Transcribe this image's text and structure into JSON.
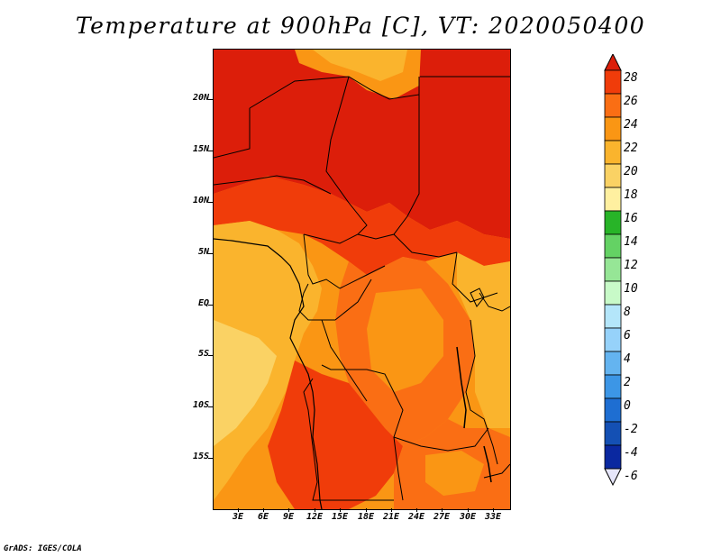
{
  "title": "Temperature at 900hPa [C], VT: 2020050400",
  "footer": "GrADS: IGES/COLA",
  "map": {
    "y_ticks": [
      {
        "label": "20N",
        "lat": 20
      },
      {
        "label": "15N",
        "lat": 15
      },
      {
        "label": "10N",
        "lat": 10
      },
      {
        "label": "5N",
        "lat": 5
      },
      {
        "label": "EQ",
        "lat": 0
      },
      {
        "label": "5S",
        "lat": -5
      },
      {
        "label": "10S",
        "lat": -10
      },
      {
        "label": "15S",
        "lat": -15
      }
    ],
    "x_ticks": [
      {
        "label": "3E",
        "lon": 3
      },
      {
        "label": "6E",
        "lon": 6
      },
      {
        "label": "9E",
        "lon": 9
      },
      {
        "label": "12E",
        "lon": 12
      },
      {
        "label": "15E",
        "lon": 15
      },
      {
        "label": "18E",
        "lon": 18
      },
      {
        "label": "21E",
        "lon": 21
      },
      {
        "label": "24E",
        "lon": 24
      },
      {
        "label": "27E",
        "lon": 27
      },
      {
        "label": "30E",
        "lon": 30
      },
      {
        "label": "33E",
        "lon": 33
      }
    ],
    "lon_range": [
      0.3,
      35.0
    ],
    "lat_range": [
      -19.8,
      24.8
    ]
  },
  "colorbar": {
    "levels": [
      "28",
      "26",
      "24",
      "22",
      "20",
      "18",
      "16",
      "14",
      "12",
      "10",
      "8",
      "6",
      "4",
      "2",
      "0",
      "-2",
      "-4",
      "-6"
    ],
    "colors": [
      "#dc1e0a",
      "#f03c0a",
      "#fa6e14",
      "#fa9614",
      "#fab42d",
      "#fad264",
      "#fff0a0",
      "#28b428",
      "#64d264",
      "#96e696",
      "#c8fac8",
      "#b4e6fa",
      "#96d2fa",
      "#64b4f0",
      "#3c96e6",
      "#1e6ed2",
      "#1450b4",
      "#0a28a0",
      "#000a64"
    ],
    "top_arrow_color": "#dc1e0a",
    "bottom_arrow_color": "#e6e6fa"
  }
}
